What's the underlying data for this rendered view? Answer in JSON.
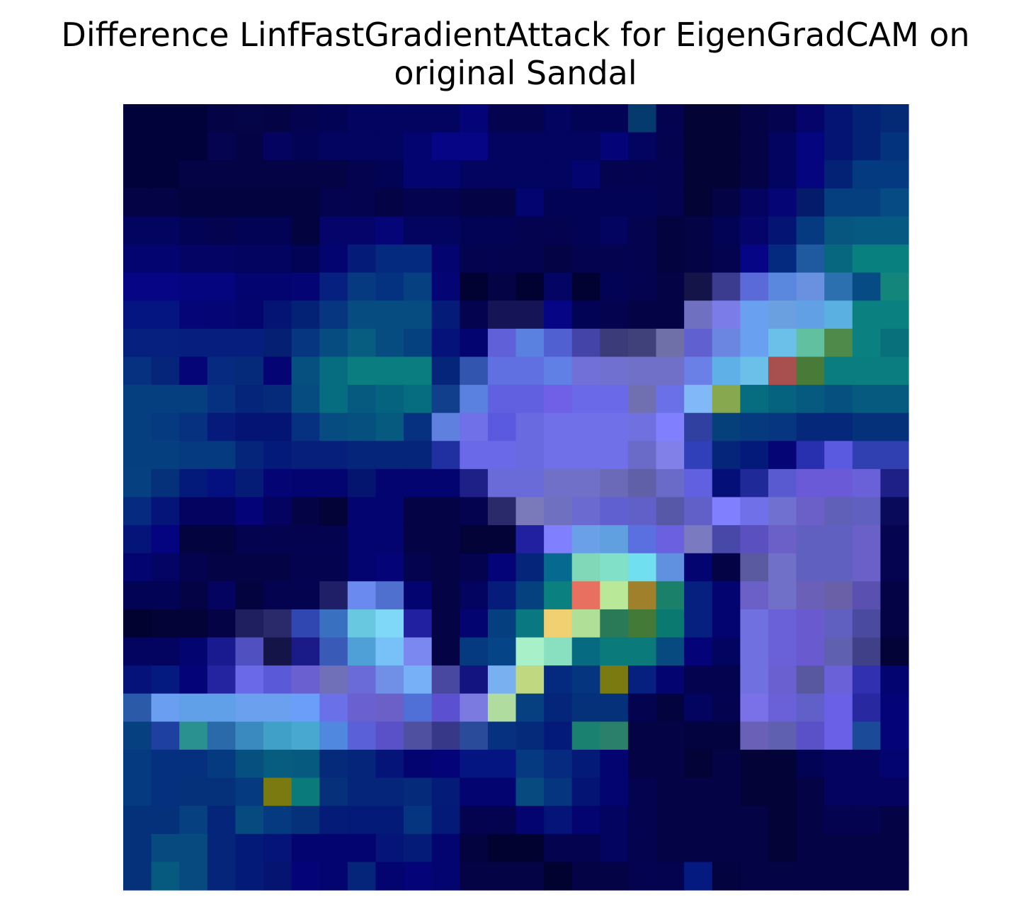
{
  "chart_data": {
    "type": "heatmap",
    "title_line1": "Difference LinfFastGradientAttack for EigenGradCAM on",
    "title_line2": "original Sandal",
    "axes_visible": false,
    "grid": false,
    "rows": 28,
    "cols": 28,
    "cells": [
      [
        "#02023a",
        "#02023a",
        "#02023a",
        "#030345",
        "#040448",
        "#030345",
        "#030350",
        "#030355",
        "#030360",
        "#030360",
        "#030360",
        "#030360",
        "#040478",
        "#030350",
        "#030350",
        "#030360",
        "#030355",
        "#030355",
        "#053a6e",
        "#030350",
        "#030335",
        "#030335",
        "#030345",
        "#030350",
        "#04046a",
        "#041472",
        "#042275",
        "#042a75"
      ],
      [
        "#02023a",
        "#02023a",
        "#02023a",
        "#040450",
        "#030345",
        "#040460",
        "#030355",
        "#030360",
        "#030360",
        "#030360",
        "#040470",
        "#050585",
        "#050585",
        "#030360",
        "#030360",
        "#030360",
        "#030360",
        "#040478",
        "#030360",
        "#030350",
        "#030335",
        "#030335",
        "#030345",
        "#030360",
        "#050580",
        "#041472",
        "#042275",
        "#04337d"
      ],
      [
        "#02023a",
        "#02023a",
        "#030345",
        "#030345",
        "#030345",
        "#030345",
        "#030345",
        "#030345",
        "#030350",
        "#030355",
        "#040470",
        "#040470",
        "#030360",
        "#030360",
        "#030360",
        "#030360",
        "#040470",
        "#030350",
        "#030350",
        "#030350",
        "#030335",
        "#030335",
        "#030345",
        "#030360",
        "#050580",
        "#042275",
        "#043a80",
        "#043a80"
      ],
      [
        "#030345",
        "#030345",
        "#030340",
        "#030340",
        "#030340",
        "#030340",
        "#030340",
        "#030350",
        "#030350",
        "#030345",
        "#030350",
        "#030350",
        "#030345",
        "#030345",
        "#040470",
        "#030355",
        "#030355",
        "#030355",
        "#030355",
        "#030350",
        "#030335",
        "#030345",
        "#040460",
        "#050575",
        "#041a6a",
        "#063f80",
        "#063f80",
        "#064b84"
      ],
      [
        "#030360",
        "#030360",
        "#030355",
        "#030350",
        "#030355",
        "#030355",
        "#030340",
        "#04046a",
        "#04046a",
        "#050578",
        "#030360",
        "#030360",
        "#030355",
        "#030355",
        "#030350",
        "#030350",
        "#030355",
        "#030360",
        "#030350",
        "#030340",
        "#030345",
        "#030355",
        "#04046a",
        "#041472",
        "#053a80",
        "#065680",
        "#065a82",
        "#065a82"
      ],
      [
        "#040470",
        "#040470",
        "#040465",
        "#040465",
        "#030360",
        "#030360",
        "#030355",
        "#040470",
        "#041c78",
        "#042a80",
        "#042a80",
        "#040470",
        "#030350",
        "#030350",
        "#030350",
        "#030345",
        "#030350",
        "#030350",
        "#030350",
        "#030340",
        "#030345",
        "#030350",
        "#050585",
        "#042a80",
        "#1f5aa0",
        "#06677f",
        "#088080",
        "#088080"
      ],
      [
        "#050585",
        "#050585",
        "#050580",
        "#050580",
        "#040470",
        "#040470",
        "#040475",
        "#062080",
        "#053a80",
        "#053280",
        "#064080",
        "#040475",
        "#020232",
        "#030345",
        "#020232",
        "#040465",
        "#020232",
        "#030355",
        "#030350",
        "#030345",
        "#141448",
        "#3b3b8f",
        "#5a6ad8",
        "#5a88de",
        "#6a90e0",
        "#2d70b0",
        "#064b84",
        "#13857a"
      ],
      [
        "#041480",
        "#041480",
        "#050578",
        "#050575",
        "#05056f",
        "#041475",
        "#042275",
        "#063680",
        "#064c80",
        "#064c80",
        "#064c80",
        "#041c78",
        "#030350",
        "#141456",
        "#141456",
        "#050585",
        "#030355",
        "#030350",
        "#030345",
        "#030345",
        "#7070c0",
        "#7c7ce8",
        "#6aa0f0",
        "#6aa0e0",
        "#62a0e6",
        "#5ab0e0",
        "#0a8080",
        "#0a8080"
      ],
      [
        "#062080",
        "#062080",
        "#061f7e",
        "#061f7e",
        "#061f7e",
        "#051f73",
        "#063680",
        "#064c80",
        "#065d80",
        "#064c80",
        "#06417f",
        "#05127a",
        "#040470",
        "#6060d8",
        "#5a80e0",
        "#5060d0",
        "#4444a8",
        "#3b3b7a",
        "#40407a",
        "#7070a8",
        "#6060d0",
        "#6a86e0",
        "#6aa0f0",
        "#6ac0e8",
        "#60c0a0",
        "#508a4a",
        "#0a8080",
        "#07707a"
      ],
      [
        "#063080",
        "#05257a",
        "#050578",
        "#062a80",
        "#052a7a",
        "#040475",
        "#065080",
        "#066d80",
        "#0a7d80",
        "#0a7d80",
        "#0a7d80",
        "#05257a",
        "#3256b0",
        "#6070e0",
        "#6070e0",
        "#6080e6",
        "#7070d8",
        "#7070d0",
        "#7070c8",
        "#7070c8",
        "#6a80e6",
        "#60b0e8",
        "#6ac0e8",
        "#a85050",
        "#4a7a38",
        "#0a7d80",
        "#0a7d80",
        "#0a7d80"
      ],
      [
        "#063f80",
        "#063f80",
        "#063f80",
        "#063080",
        "#05257a",
        "#052a7a",
        "#064c80",
        "#066d80",
        "#065a80",
        "#06637f",
        "#066d80",
        "#123f8c",
        "#5a80e0",
        "#6060e0",
        "#6060e0",
        "#7060e8",
        "#6a6ae8",
        "#6a6ae8",
        "#7070b0",
        "#6a70e8",
        "#80b8f8",
        "#88a850",
        "#066d80",
        "#06637f",
        "#065a80",
        "#065080",
        "#065a80",
        "#065a80"
      ],
      [
        "#063f80",
        "#063a80",
        "#063080",
        "#051a7a",
        "#041475",
        "#041475",
        "#063080",
        "#064c80",
        "#065080",
        "#065a80",
        "#063080",
        "#6080e0",
        "#7070e8",
        "#5a5ae0",
        "#6a6ae0",
        "#7070e8",
        "#7070e8",
        "#7070e8",
        "#7070e0",
        "#8080ff",
        "#3040a0",
        "#06407a",
        "#063a7f",
        "#06367f",
        "#05287a",
        "#05287a",
        "#05307a",
        "#05307a"
      ],
      [
        "#063f80",
        "#063f80",
        "#063a80",
        "#063a80",
        "#05257a",
        "#041a7a",
        "#051f7a",
        "#051f7a",
        "#05257a",
        "#05257a",
        "#05257a",
        "#2030a0",
        "#6a6ae8",
        "#6a6ae8",
        "#6a6ae0",
        "#7070e8",
        "#7070e8",
        "#7070e8",
        "#6a6ac8",
        "#8080e8",
        "#3040b8",
        "#05257a",
        "#041a7a",
        "#050575",
        "#2830b0",
        "#5a5ae0",
        "#3040b0",
        "#3040b0"
      ],
      [
        "#064080",
        "#05307a",
        "#041a7a",
        "#041080",
        "#041c75",
        "#040475",
        "#040470",
        "#040470",
        "#041570",
        "#040470",
        "#040470",
        "#040470",
        "#1f1f88",
        "#6a6ad8",
        "#6a6ad8",
        "#7070c8",
        "#7070c8",
        "#6a6ab8",
        "#6060a8",
        "#6a6ac8",
        "#6060e0",
        "#041078",
        "#1f2a98",
        "#5a5ad0",
        "#6a5ad8",
        "#6a5ad8",
        "#6a60d8",
        "#1f1f88"
      ],
      [
        "#052a80",
        "#041478",
        "#040460",
        "#040460",
        "#040478",
        "#040460",
        "#030345",
        "#030338",
        "#040470",
        "#040470",
        "#030345",
        "#030345",
        "#030350",
        "#2a2a6a",
        "#7a7aba",
        "#7070c0",
        "#6a6ad0",
        "#6060d0",
        "#6060c8",
        "#5858a8",
        "#6060c8",
        "#8080ff",
        "#7070e8",
        "#7070d0",
        "#6a60c8",
        "#6060b8",
        "#6060c0",
        "#0a0a5a"
      ],
      [
        "#041478",
        "#040480",
        "#030340",
        "#030340",
        "#030350",
        "#030350",
        "#030350",
        "#030350",
        "#040470",
        "#040470",
        "#030345",
        "#030345",
        "#030338",
        "#030338",
        "#2020a0",
        "#8080ff",
        "#6aa0e8",
        "#60a0e0",
        "#5a70e0",
        "#6a60e0",
        "#7a7ac0",
        "#4848a8",
        "#5a50c0",
        "#6a60c8",
        "#6060c0",
        "#6060c0",
        "#6a60c8",
        "#040450"
      ],
      [
        "#040470",
        "#040465",
        "#030350",
        "#030345",
        "#030345",
        "#030345",
        "#030350",
        "#030350",
        "#040470",
        "#040478",
        "#030350",
        "#030345",
        "#030350",
        "#040478",
        "#05257a",
        "#066a90",
        "#80d8b8",
        "#80e0c8",
        "#70e0f0",
        "#6090e0",
        "#040470",
        "#030345",
        "#5a5aa0",
        "#7070c8",
        "#6060c0",
        "#6060c0",
        "#6a60c8",
        "#040450"
      ],
      [
        "#030355",
        "#030355",
        "#030345",
        "#040460",
        "#030340",
        "#030350",
        "#030350",
        "#1f1f68",
        "#6a8af0",
        "#5070d0",
        "#040470",
        "#030345",
        "#030360",
        "#061c7a",
        "#05407f",
        "#0a8080",
        "#e87060",
        "#b8e898",
        "#a0802a",
        "#1a806a",
        "#062080",
        "#040470",
        "#6a60c8",
        "#7070c8",
        "#6a60b8",
        "#6a60a8",
        "#5a50b0",
        "#030345"
      ],
      [
        "#020230",
        "#030338",
        "#030338",
        "#030345",
        "#1f1f60",
        "#2a2a6a",
        "#3046b0",
        "#3a70c0",
        "#68c8e0",
        "#80d8f8",
        "#2020a0",
        "#030345",
        "#040470",
        "#063f80",
        "#0a7880",
        "#f0d070",
        "#b0e098",
        "#2a7a58",
        "#447a38",
        "#0a7a70",
        "#062080",
        "#040470",
        "#7070e0",
        "#6a60d8",
        "#6a5ad0",
        "#6060c0",
        "#4a4aa0",
        "#030345"
      ],
      [
        "#030360",
        "#030360",
        "#040470",
        "#1a1a90",
        "#5050c0",
        "#141448",
        "#1a1a88",
        "#3a5ab8",
        "#50a0d8",
        "#78c0f8",
        "#7a88f0",
        "#030345",
        "#063a80",
        "#064488",
        "#a8f0c8",
        "#88e0c0",
        "#066a80",
        "#0a7a7a",
        "#0a7a7a",
        "#064a80",
        "#040478",
        "#030360",
        "#7070e0",
        "#6a60d8",
        "#6a5ad0",
        "#6060b0",
        "#404088",
        "#030338"
      ],
      [
        "#05127a",
        "#041a80",
        "#040478",
        "#2424a0",
        "#6a6ae8",
        "#5a5ad8",
        "#6a60d0",
        "#7070b8",
        "#6a6ad8",
        "#7090e8",
        "#78b0f8",
        "#4848a0",
        "#141480",
        "#78b0f0",
        "#c0d880",
        "#042a80",
        "#06357f",
        "#7a7a10",
        "#062080",
        "#040470",
        "#030350",
        "#030350",
        "#7070e0",
        "#6a60d0",
        "#5858a0",
        "#6a60d8",
        "#3030b0",
        "#040470"
      ],
      [
        "#2a5aa8",
        "#6a9ef0",
        "#60a0e8",
        "#60a0e8",
        "#6aa0ee",
        "#6aa0ee",
        "#6a9ef8",
        "#6a70e8",
        "#6a60d0",
        "#6a60c8",
        "#5070d8",
        "#5a50d0",
        "#7a7ae0",
        "#b0dca0",
        "#064080",
        "#05257a",
        "#05307a",
        "#05307a",
        "#030350",
        "#030340",
        "#030360",
        "#030350",
        "#7a70e8",
        "#6a60d8",
        "#6060c8",
        "#6a60e8",
        "#2828a0",
        "#040478"
      ],
      [
        "#064080",
        "#1e40a0",
        "#2a9090",
        "#2a6aaa",
        "#3a8ac0",
        "#40a0c8",
        "#48a8d0",
        "#5088e0",
        "#5a60d8",
        "#5a50c8",
        "#5050a0",
        "#383888",
        "#2a4a9a",
        "#063080",
        "#052a7a",
        "#041a7a",
        "#1a8070",
        "#2a806a",
        "#030345",
        "#030345",
        "#030340",
        "#030340",
        "#6a60b8",
        "#6060b0",
        "#5a50c8",
        "#6a60e8",
        "#1a4a98",
        "#040478"
      ],
      [
        "#053a80",
        "#05307f",
        "#05307f",
        "#063a80",
        "#065080",
        "#065d80",
        "#065a80",
        "#052a7a",
        "#05257a",
        "#041478",
        "#040470",
        "#040478",
        "#041480",
        "#041480",
        "#053a80",
        "#052a80",
        "#041a78",
        "#040470",
        "#030345",
        "#030345",
        "#030338",
        "#030345",
        "#030338",
        "#030338",
        "#030355",
        "#040460",
        "#040460",
        "#040470"
      ],
      [
        "#053a80",
        "#05307f",
        "#05307a",
        "#05307a",
        "#063a80",
        "#7a7a10",
        "#0a7a7a",
        "#06307a",
        "#05257a",
        "#05257a",
        "#052a7a",
        "#041c78",
        "#040470",
        "#040470",
        "#064a80",
        "#05357f",
        "#041475",
        "#040470",
        "#030350",
        "#030345",
        "#030345",
        "#030345",
        "#030338",
        "#030338",
        "#030345",
        "#040460",
        "#040460",
        "#040460"
      ],
      [
        "#05307a",
        "#05307a",
        "#064080",
        "#05257a",
        "#064a80",
        "#063a80",
        "#05307a",
        "#041c78",
        "#041a78",
        "#041a78",
        "#063580",
        "#041a78",
        "#030350",
        "#030350",
        "#040470",
        "#041478",
        "#040470",
        "#030360",
        "#030350",
        "#030345",
        "#030345",
        "#030345",
        "#030345",
        "#030338",
        "#030345",
        "#030350",
        "#030350",
        "#030345"
      ],
      [
        "#05307a",
        "#064a80",
        "#064a80",
        "#05257a",
        "#041a78",
        "#041478",
        "#040470",
        "#040470",
        "#040470",
        "#041478",
        "#041c78",
        "#040470",
        "#030340",
        "#020230",
        "#020230",
        "#030350",
        "#030350",
        "#030360",
        "#030350",
        "#030345",
        "#030345",
        "#030345",
        "#030345",
        "#030338",
        "#030345",
        "#030345",
        "#030345",
        "#030345"
      ],
      [
        "#05307a",
        "#065a80",
        "#064a80",
        "#05257a",
        "#041a78",
        "#041470",
        "#040478",
        "#040470",
        "#05257a",
        "#040470",
        "#040478",
        "#040470",
        "#030345",
        "#030345",
        "#030345",
        "#020230",
        "#030345",
        "#030345",
        "#030350",
        "#030350",
        "#041a80",
        "#030340",
        "#030345",
        "#030345",
        "#030345",
        "#030345",
        "#030345",
        "#030345"
      ]
    ]
  }
}
